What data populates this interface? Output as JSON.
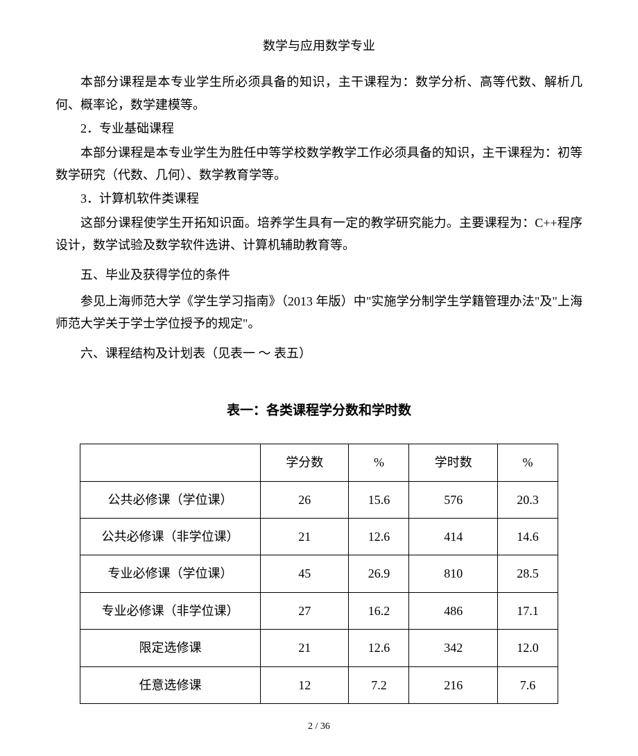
{
  "header": {
    "title": "数学与应用数学专业"
  },
  "paragraphs": {
    "p1": "本部分课程是本专业学生所必须具备的知识，主干课程为：数学分析、高等代数、解析几何、概率论，数学建模等。",
    "p2_heading": "2．专业基础课程",
    "p2": "本部分课程是本专业学生为胜任中等学校数学教学工作必须具备的知识，主干课程为：初等数学研究（代数、几何）、数学教育学等。",
    "p3_heading": "3．计算机软件类课程",
    "p3": "这部分课程使学生开拓知识面。培养学生具有一定的教学研究能力。主要课程为：C++程序设计，数学试验及数学软件选讲、计算机辅助教育等。",
    "sec5_heading": "五、毕业及获得学位的条件",
    "sec5": "参见上海师范大学《学生学习指南》（2013 年版）中\"实施学分制学生学籍管理办法\"及\"上海师范大学关于学士学位授予的规定\"。",
    "sec6_heading": "六、课程结构及计划表（见表一 ～ 表五）"
  },
  "table1": {
    "caption": "表一：各类课程学分数和学时数",
    "columns": [
      "",
      "学分数",
      "%",
      "学时数",
      "%"
    ],
    "rows": [
      {
        "label": "公共必修课（学位课）",
        "credits": "26",
        "credits_pct": "15.6",
        "hours": "576",
        "hours_pct": "20.3"
      },
      {
        "label": "公共必修课（非学位课）",
        "credits": "21",
        "credits_pct": "12.6",
        "hours": "414",
        "hours_pct": "14.6"
      },
      {
        "label": "专业必修课（学位课）",
        "credits": "45",
        "credits_pct": "26.9",
        "hours": "810",
        "hours_pct": "28.5"
      },
      {
        "label": "专业必修课（非学位课）",
        "credits": "27",
        "credits_pct": "16.2",
        "hours": "486",
        "hours_pct": "17.1"
      },
      {
        "label": "限定选修课",
        "credits": "21",
        "credits_pct": "12.6",
        "hours": "342",
        "hours_pct": "12.0"
      },
      {
        "label": "任意选修课",
        "credits": "12",
        "credits_pct": "7.2",
        "hours": "216",
        "hours_pct": "7.6"
      }
    ]
  },
  "footer": {
    "page_number": "2 / 36"
  }
}
